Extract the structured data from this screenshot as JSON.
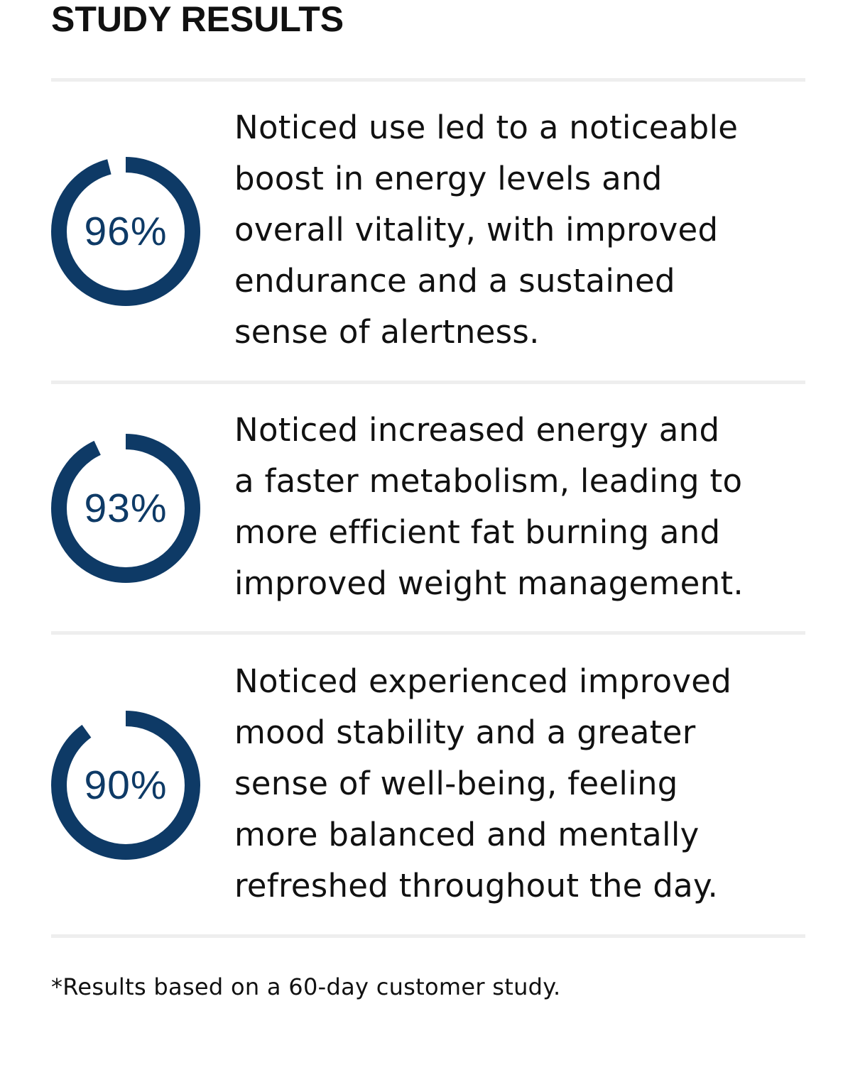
{
  "section": {
    "title": "STUDY RESULTS"
  },
  "colors": {
    "ring": "#0e3a66",
    "divider": "#eeeeee",
    "text": "#111111"
  },
  "results": [
    {
      "value_label": "96%",
      "percent": 96,
      "description": "Noticed use led to a noticeable\nboost in energy levels and\noverall vitality, with improved\nendurance and a sustained\nsense of alertness."
    },
    {
      "value_label": "93%",
      "percent": 93,
      "description": "Noticed increased energy and\na faster metabolism, leading to\nmore efficient fat burning and\nimproved weight management."
    },
    {
      "value_label": "90%",
      "percent": 90,
      "description": "Noticed experienced improved\nmood stability and a greater\nsense of well-being, feeling\nmore balanced and mentally\nrefreshed throughout the day."
    }
  ],
  "footnote": "*Results based on a 60-day customer study."
}
